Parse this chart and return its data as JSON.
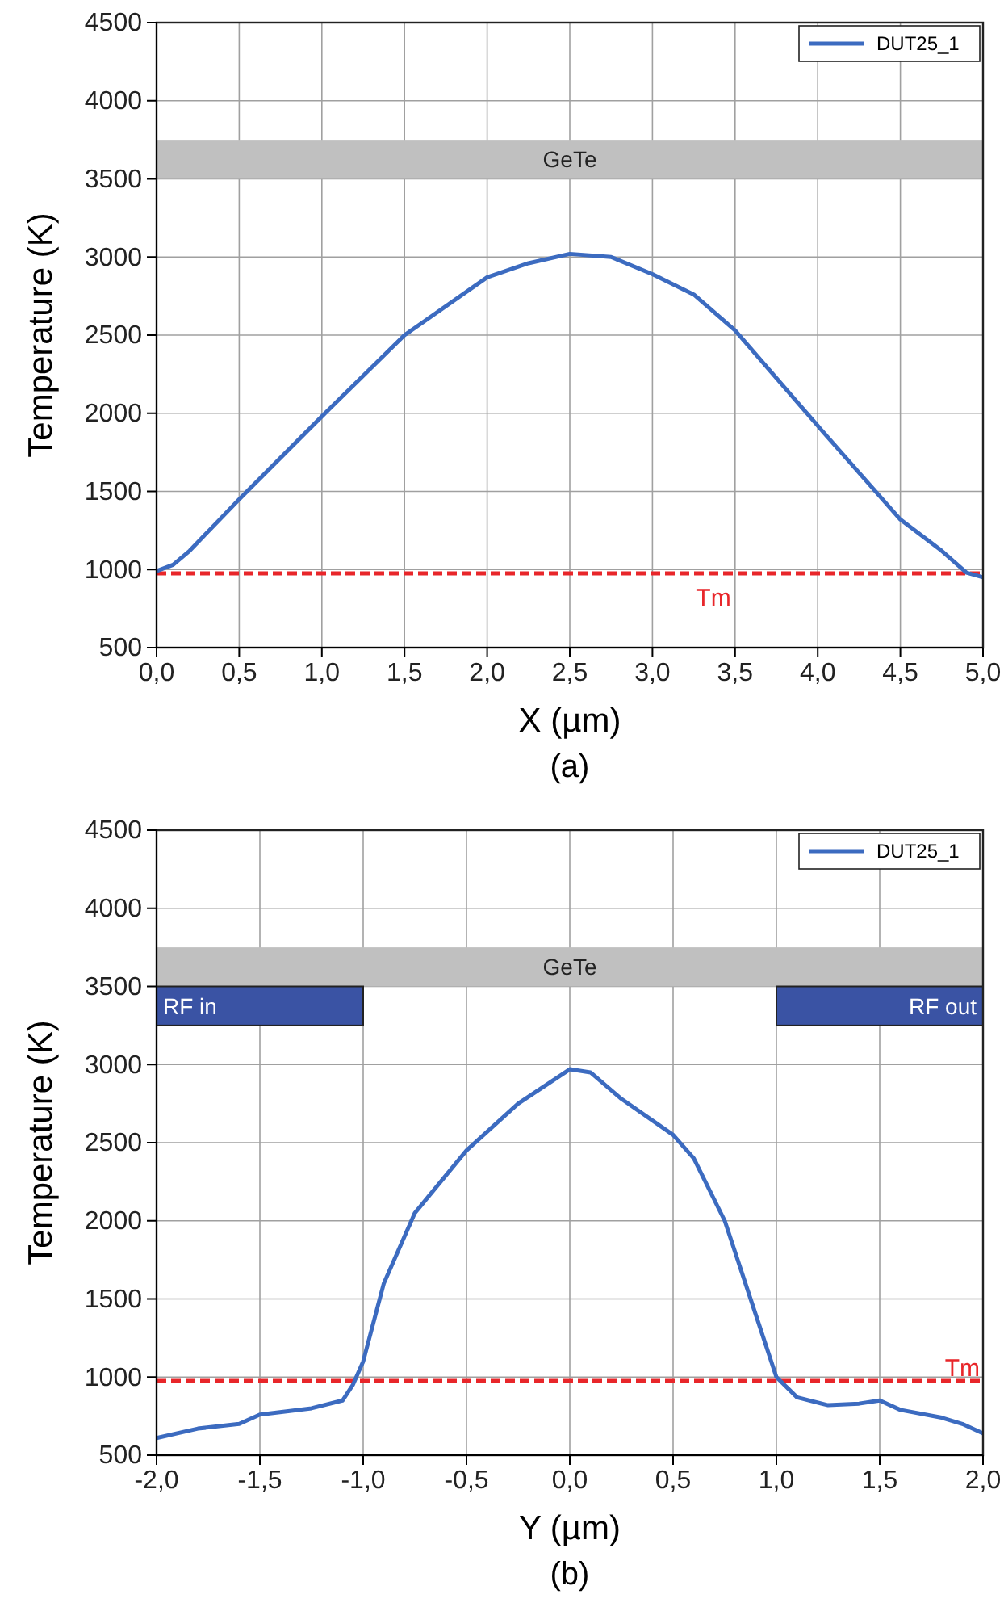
{
  "chart_data": [
    {
      "type": "line",
      "xlabel": "X (µm)",
      "ylabel": "Temperature (K)",
      "annotations": [
        "(a)"
      ],
      "xlim": [
        0,
        5
      ],
      "xticks": [
        {
          "value": 0,
          "label": "0,0"
        },
        {
          "value": 0.5,
          "label": "0,5"
        },
        {
          "value": 1,
          "label": "1,0"
        },
        {
          "value": 1.5,
          "label": "1,5"
        },
        {
          "value": 2,
          "label": "2,0"
        },
        {
          "value": 2.5,
          "label": "2,5"
        },
        {
          "value": 3,
          "label": "3,0"
        },
        {
          "value": 3.5,
          "label": "3,5"
        },
        {
          "value": 4,
          "label": "4,0"
        },
        {
          "value": 4.5,
          "label": "4,5"
        },
        {
          "value": 5,
          "label": "5,0"
        }
      ],
      "ylim": [
        500,
        4500
      ],
      "yticks": [
        500,
        1000,
        1500,
        2000,
        2500,
        3000,
        3500,
        4000,
        4500
      ],
      "grid": true,
      "legend": "top right",
      "line_style": "solid",
      "series": [
        {
          "name": "DUT25_1",
          "color": "#3c6bc0",
          "x": [
            0,
            0.1,
            0.2,
            0.5,
            1.0,
            1.5,
            2.0,
            2.25,
            2.5,
            2.75,
            3.0,
            3.25,
            3.5,
            4.0,
            4.5,
            4.75,
            4.9,
            5.0
          ],
          "values": [
            990,
            1030,
            1120,
            1450,
            1980,
            2500,
            2870,
            2960,
            3020,
            3000,
            2890,
            2760,
            2530,
            1920,
            1320,
            1120,
            980,
            950
          ]
        }
      ],
      "ref_lines": [
        {
          "axis": "y",
          "value": 975,
          "label": "Tm",
          "color": "#e8262a",
          "line_style": "dashed"
        }
      ],
      "bands": [
        {
          "axis": "y",
          "from": 3500,
          "to": 3750,
          "label": "GeTe",
          "color": "#c0c0c0"
        }
      ]
    },
    {
      "type": "line",
      "xlabel": "Y (µm)",
      "ylabel": "Temperature (K)",
      "annotations": [
        "(b)"
      ],
      "xlim": [
        -2,
        2
      ],
      "xticks": [
        {
          "value": -2,
          "label": "-2,0"
        },
        {
          "value": -1.5,
          "label": "-1,5"
        },
        {
          "value": -1,
          "label": "-1,0"
        },
        {
          "value": -0.5,
          "label": "-0,5"
        },
        {
          "value": 0,
          "label": "0,0"
        },
        {
          "value": 0.5,
          "label": "0,5"
        },
        {
          "value": 1,
          "label": "1,0"
        },
        {
          "value": 1.5,
          "label": "1,5"
        },
        {
          "value": 2,
          "label": "2,0"
        }
      ],
      "ylim": [
        500,
        4500
      ],
      "yticks": [
        500,
        1000,
        1500,
        2000,
        2500,
        3000,
        3500,
        4000,
        4500
      ],
      "grid": true,
      "legend": "top right",
      "line_style": "solid",
      "series": [
        {
          "name": "DUT25_1",
          "color": "#3c6bc0",
          "x": [
            -2,
            -1.8,
            -1.6,
            -1.5,
            -1.25,
            -1.1,
            -1.05,
            -1.0,
            -0.9,
            -0.75,
            -0.5,
            -0.25,
            0,
            0.1,
            0.25,
            0.5,
            0.6,
            0.75,
            0.9,
            1.0,
            1.1,
            1.25,
            1.4,
            1.5,
            1.6,
            1.8,
            1.9,
            2.0
          ],
          "values": [
            610,
            670,
            700,
            760,
            800,
            850,
            950,
            1100,
            1600,
            2050,
            2450,
            2750,
            2970,
            2950,
            2780,
            2550,
            2400,
            2000,
            1400,
            1000,
            870,
            820,
            830,
            850,
            790,
            740,
            700,
            640
          ]
        }
      ],
      "ref_lines": [
        {
          "axis": "y",
          "value": 975,
          "label": "Tm",
          "color": "#e8262a",
          "line_style": "dashed"
        }
      ],
      "bands": [
        {
          "axis": "y",
          "from": 3500,
          "to": 3750,
          "label": "GeTe",
          "color": "#c0c0c0"
        },
        {
          "axis": "x",
          "from": -2,
          "to": -1,
          "label": "RF in",
          "color": "#3a53a4"
        },
        {
          "axis": "x",
          "from": 1,
          "to": 2,
          "label": "RF out",
          "color": "#3a53a4"
        }
      ]
    }
  ]
}
